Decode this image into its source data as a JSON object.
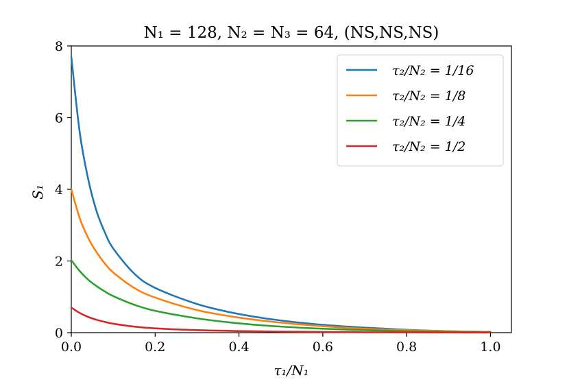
{
  "chart_data": {
    "type": "line",
    "title": "N₁ = 128, N₂ = N₃ = 64, (NS,NS,NS)",
    "xlabel": "τ₁/N₁",
    "ylabel": "S₁",
    "xlim": [
      0.0,
      1.05
    ],
    "ylim": [
      0,
      8
    ],
    "xticks": [
      "0.0",
      "0.2",
      "0.4",
      "0.6",
      "0.8",
      "1.0"
    ],
    "yticks": [
      "0",
      "2",
      "4",
      "6",
      "8"
    ],
    "grid": false,
    "legend_position": "top-right",
    "x": [
      0.0,
      0.02,
      0.04,
      0.06,
      0.08,
      0.1,
      0.15,
      0.2,
      0.3,
      0.4,
      0.5,
      0.6,
      0.7,
      0.8,
      0.9,
      1.0
    ],
    "series": [
      {
        "name": "τ₂/N₂ = 1/16",
        "color": "#1f77b4",
        "values": [
          7.7,
          5.6,
          4.3,
          3.4,
          2.8,
          2.35,
          1.65,
          1.25,
          0.8,
          0.52,
          0.34,
          0.22,
          0.14,
          0.08,
          0.04,
          0.02
        ]
      },
      {
        "name": "τ₂/N₂ = 1/8",
        "color": "#ff7f0e",
        "values": [
          4.0,
          3.2,
          2.65,
          2.25,
          1.93,
          1.68,
          1.25,
          0.98,
          0.63,
          0.42,
          0.28,
          0.18,
          0.11,
          0.07,
          0.04,
          0.02
        ]
      },
      {
        "name": "τ₂/N₂ = 1/4",
        "color": "#2ca02c",
        "values": [
          2.02,
          1.72,
          1.48,
          1.3,
          1.15,
          1.02,
          0.78,
          0.61,
          0.4,
          0.26,
          0.17,
          0.11,
          0.07,
          0.04,
          0.025,
          0.015
        ]
      },
      {
        "name": "τ₂/N₂ = 1/2",
        "color": "#d62728",
        "values": [
          0.7,
          0.55,
          0.44,
          0.36,
          0.3,
          0.25,
          0.17,
          0.12,
          0.07,
          0.045,
          0.03,
          0.02,
          0.012,
          0.008,
          0.005,
          0.003
        ]
      }
    ]
  }
}
